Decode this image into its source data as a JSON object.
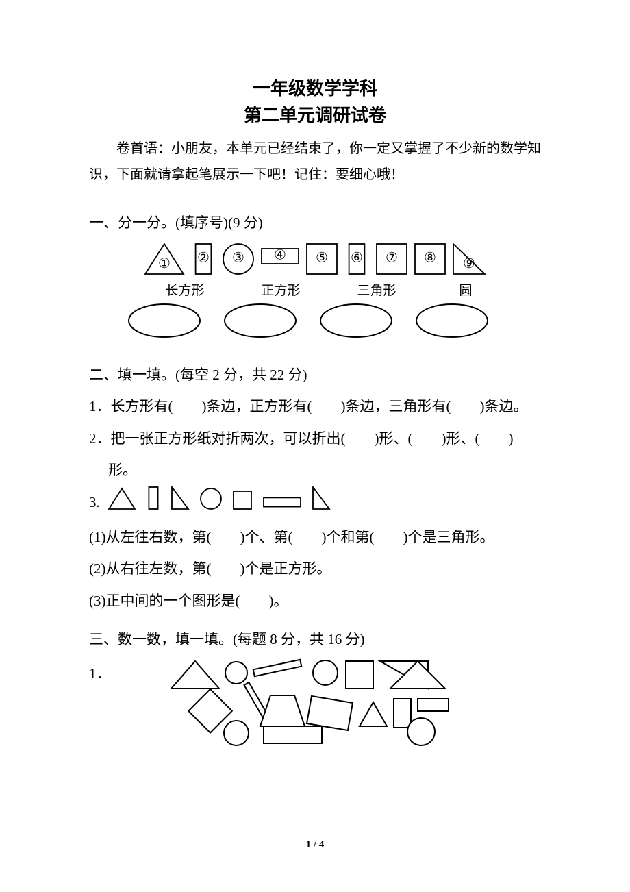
{
  "title_line1": "一年级数学学科",
  "title_line2": "第二单元调研试卷",
  "intro": "卷首语：小朋友，本单元已经结束了，你一定又掌握了不少新的数学知识，下面就请拿起笔展示一下吧！记住：要细心哦！",
  "section1": {
    "heading": "一、分一分。(填序号)(9 分)",
    "shapes": [
      {
        "num": "①",
        "type": "triangle"
      },
      {
        "num": "②",
        "type": "rect-tall"
      },
      {
        "num": "③",
        "type": "circle"
      },
      {
        "num": "④",
        "type": "rect-wide"
      },
      {
        "num": "⑤",
        "type": "square"
      },
      {
        "num": "⑥",
        "type": "rect-tall"
      },
      {
        "num": "⑦",
        "type": "square"
      },
      {
        "num": "⑧",
        "type": "square"
      },
      {
        "num": "⑨",
        "type": "right-triangle"
      }
    ],
    "categories": [
      "长方形",
      "正方形",
      "三角形",
      "圆"
    ],
    "oval_count": 4,
    "stroke": "#000000",
    "fill": "#ffffff"
  },
  "section2": {
    "heading": "二、填一填。(每空 2 分，共 22 分)",
    "q1": "1．长方形有(　　)条边，正方形有(　　)条边，三角形有(　　)条边。",
    "q2a": "2．把一张正方形纸对折两次，可以折出(　　)形、(　　)形、(　　)",
    "q2b": "形。",
    "q3_label": "3.",
    "q3_shapes": [
      {
        "type": "triangle"
      },
      {
        "type": "rect-tall"
      },
      {
        "type": "right-triangle"
      },
      {
        "type": "circle"
      },
      {
        "type": "square"
      },
      {
        "type": "rect-wide"
      },
      {
        "type": "right-triangle"
      }
    ],
    "q3_1": "(1)从左往右数，第(　　)个、第(　　)个和第(　　)个是三角形。",
    "q3_2": "(2)从右往左数，第(　　)个是正方形。",
    "q3_3": "(3)正中间的一个图形是(　　)。"
  },
  "section3": {
    "heading": "三、数一数，填一填。(每题 8 分，共 16 分)",
    "q1_label": "1．",
    "figure_stroke": "#000000",
    "figure_fill": "#ffffff"
  },
  "page_num": "1 / 4"
}
